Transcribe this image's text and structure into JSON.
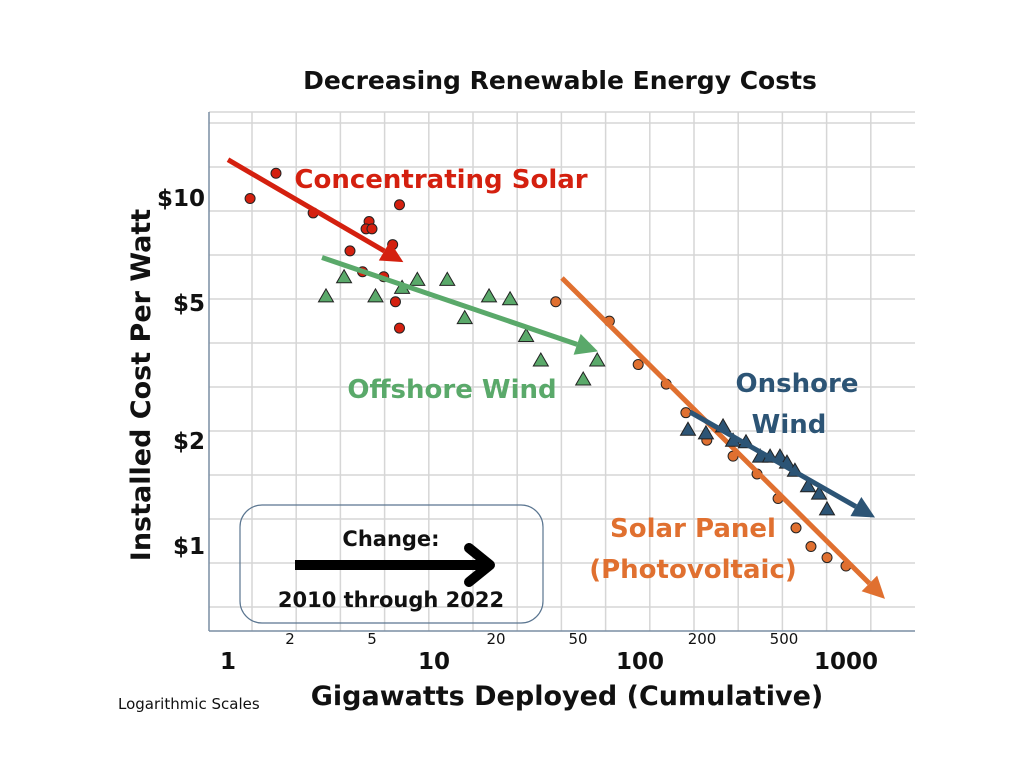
{
  "chart_data": {
    "type": "scatter",
    "title": "Decreasing Renewable Energy Costs",
    "xlabel": "Gigawatts Deployed (Cumulative)",
    "ylabel": "Installed Cost Per Watt",
    "xscale": "log",
    "yscale": "log",
    "xlim": [
      0.8,
      2200
    ],
    "ylim": [
      0.6,
      15
    ],
    "grid": true,
    "note": "Logarithmic Scales",
    "x_major_ticks": [
      {
        "value": 1,
        "label": "1"
      },
      {
        "value": 10,
        "label": "10"
      },
      {
        "value": 100,
        "label": "100"
      },
      {
        "value": 1000,
        "label": "1000"
      }
    ],
    "x_minor_ticks": [
      {
        "value": 2,
        "label": "2"
      },
      {
        "value": 5,
        "label": "5"
      },
      {
        "value": 20,
        "label": "20"
      },
      {
        "value": 50,
        "label": "50"
      },
      {
        "value": 200,
        "label": "200"
      },
      {
        "value": 500,
        "label": "500"
      }
    ],
    "y_ticks": [
      {
        "value": 10,
        "label": "$10"
      },
      {
        "value": 5,
        "label": "$5"
      },
      {
        "value": 2,
        "label": "$2"
      },
      {
        "value": 1,
        "label": "$1"
      }
    ],
    "legend_box": {
      "title": "Change:",
      "subtitle": "2010 through 2022"
    },
    "series": [
      {
        "name": "Concentrating Solar",
        "label_lines": [
          "Concentrating Solar"
        ],
        "marker": "circle",
        "color": "#d4200f",
        "x": [
          1.28,
          1.71,
          2.59,
          3.91,
          4.84,
          4.68,
          5.0,
          6.3,
          6.8,
          4.5,
          5.7,
          6.5,
          6.8
        ],
        "y": [
          9.9,
          11.7,
          9.0,
          7.0,
          8.5,
          8.1,
          8.1,
          7.3,
          9.5,
          6.1,
          5.9,
          5.0,
          4.2
        ],
        "trend": {
          "from": [
            1.0,
            12.8
          ],
          "to": [
            7.1,
            6.5
          ]
        }
      },
      {
        "name": "Offshore Wind",
        "label_lines": [
          "Offshore Wind"
        ],
        "marker": "triangle",
        "color": "#5aa96a",
        "x": [
          2.99,
          3.66,
          5.2,
          7.0,
          8.3,
          11.6,
          14.1,
          18.5,
          23.4,
          28,
          33,
          53,
          62
        ],
        "y": [
          5.2,
          5.9,
          5.2,
          5.5,
          5.8,
          5.8,
          4.5,
          5.2,
          5.1,
          4.0,
          3.4,
          3.0,
          3.4
        ],
        "trend": {
          "from": [
            2.86,
            6.7
          ],
          "to": [
            62.5,
            3.6
          ]
        }
      },
      {
        "name": "Solar Panel (Photovoltaic)",
        "label_lines": [
          "Solar Panel",
          "(Photovoltaic)"
        ],
        "marker": "circle",
        "color": "#e07030",
        "x": [
          39,
          71,
          98,
          134,
          167,
          211,
          283,
          370,
          468,
          572,
          676,
          809,
          1000
        ],
        "y": [
          5.0,
          4.4,
          3.3,
          2.9,
          2.4,
          2.0,
          1.8,
          1.6,
          1.36,
          1.12,
          0.99,
          0.92,
          0.87
        ],
        "trend": {
          "from": [
            41.8,
            5.85
          ],
          "to": [
            1546,
            0.7
          ]
        }
      },
      {
        "name": "Onshore Wind",
        "label_lines": [
          "Onshore",
          "Wind"
        ],
        "marker": "triangle",
        "color": "#2c5475",
        "x": [
          171,
          209,
          253,
          283,
          327,
          383,
          428,
          478,
          517,
          565,
          654,
          740,
          809
        ],
        "y": [
          2.15,
          2.1,
          2.2,
          2.0,
          1.98,
          1.8,
          1.8,
          1.8,
          1.73,
          1.64,
          1.48,
          1.41,
          1.27
        ],
        "trend": {
          "from": [
            175,
            2.41
          ],
          "to": [
            1383,
            1.2
          ]
        }
      }
    ]
  }
}
